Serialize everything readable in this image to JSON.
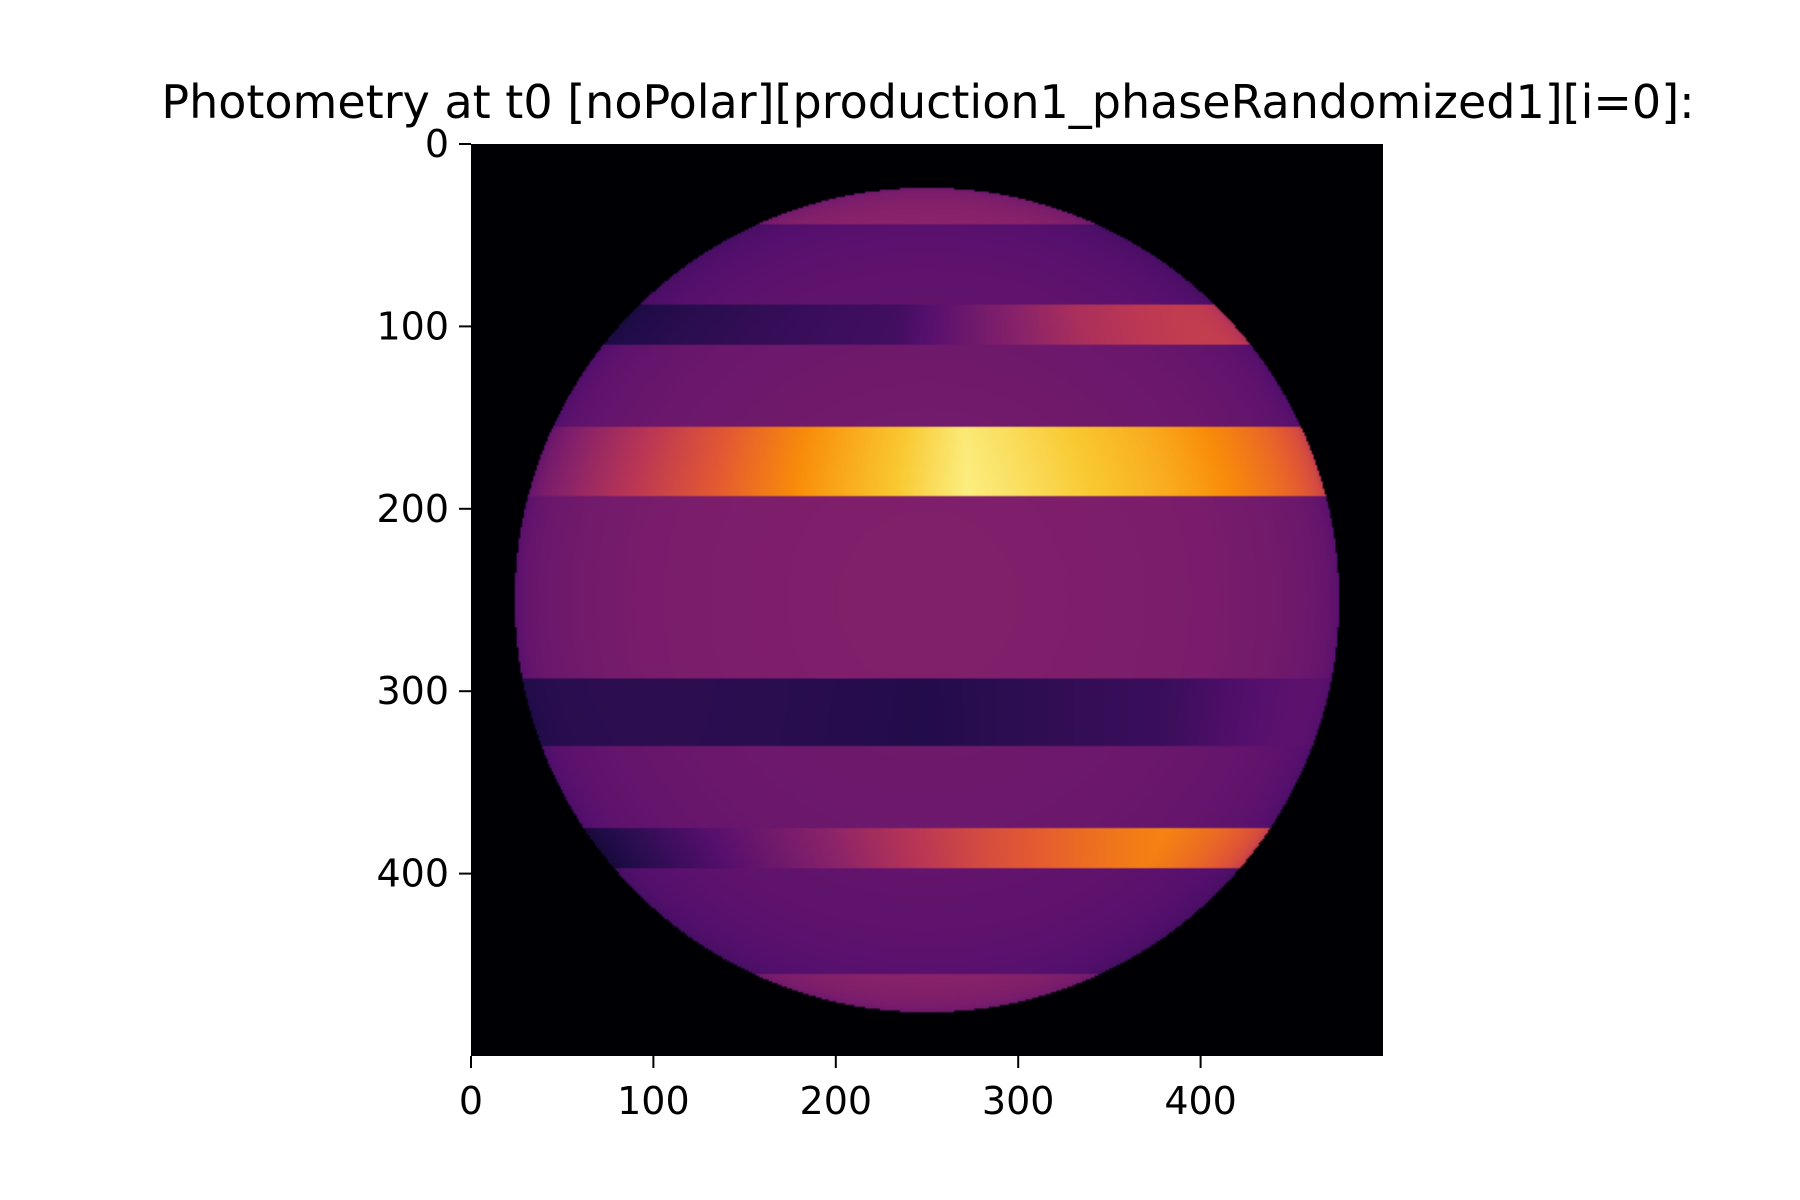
{
  "chart_data": {
    "type": "heatmap",
    "title": "Photometry at t0 [noPolar][production1_phaseRandomized1][i=0]:",
    "xlabel": "",
    "ylabel": "",
    "xlim": [
      0,
      500
    ],
    "ylim": [
      500,
      0
    ],
    "colormap": "inferno",
    "background_color": "#000000",
    "grid": false,
    "legend": "none",
    "x_ticks": [
      0,
      100,
      200,
      300,
      400
    ],
    "y_ticks": [
      0,
      100,
      200,
      300,
      400
    ],
    "x_tick_labels": [
      "0",
      "100",
      "200",
      "300",
      "400"
    ],
    "y_tick_labels": [
      "0",
      "100",
      "200",
      "300",
      "400"
    ],
    "disk": {
      "center_x": 250,
      "center_y": 250,
      "radius": 226
    },
    "base_intensity": 0.36,
    "bands": [
      {
        "y0": 24,
        "y1": 44,
        "profile": [
          [
            0,
            0.45
          ],
          [
            1,
            0.45
          ]
        ]
      },
      {
        "y0": 44,
        "y1": 88,
        "profile": [
          [
            0,
            0.3
          ],
          [
            1,
            0.3
          ]
        ]
      },
      {
        "y0": 88,
        "y1": 110,
        "profile": [
          [
            0,
            0.16
          ],
          [
            0.45,
            0.22
          ],
          [
            0.75,
            0.5
          ],
          [
            1,
            0.66
          ]
        ]
      },
      {
        "y0": 110,
        "y1": 155,
        "profile": [
          [
            0,
            0.33
          ],
          [
            1,
            0.33
          ]
        ]
      },
      {
        "y0": 155,
        "y1": 193,
        "profile": [
          [
            0,
            0.4
          ],
          [
            0.2,
            0.62
          ],
          [
            0.35,
            0.78
          ],
          [
            0.55,
            0.97
          ],
          [
            0.8,
            0.86
          ],
          [
            1,
            0.74
          ]
        ]
      },
      {
        "y0": 293,
        "y1": 330,
        "profile": [
          [
            0,
            0.18
          ],
          [
            0.5,
            0.14
          ],
          [
            0.8,
            0.2
          ],
          [
            1,
            0.34
          ]
        ]
      },
      {
        "y0": 330,
        "y1": 375,
        "profile": [
          [
            0,
            0.32
          ],
          [
            1,
            0.32
          ]
        ]
      },
      {
        "y0": 375,
        "y1": 397,
        "profile": [
          [
            0,
            0.14
          ],
          [
            0.35,
            0.4
          ],
          [
            0.6,
            0.62
          ],
          [
            0.85,
            0.8
          ],
          [
            1,
            0.74
          ]
        ]
      },
      {
        "y0": 397,
        "y1": 455,
        "profile": [
          [
            0,
            0.3
          ],
          [
            1,
            0.3
          ]
        ]
      },
      {
        "y0": 455,
        "y1": 476,
        "profile": [
          [
            0,
            0.44
          ],
          [
            1,
            0.44
          ]
        ]
      }
    ]
  }
}
